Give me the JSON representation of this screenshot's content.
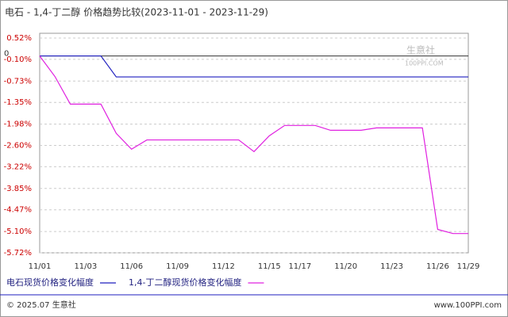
{
  "chart_data": {
    "type": "line",
    "title": "电石 - 1,4-丁二醇 价格趋势比较(2023-11-01 - 2023-11-29)",
    "categories": [
      "11/01",
      null,
      null,
      "11/03",
      null,
      null,
      "11/06",
      null,
      null,
      "11/09",
      null,
      null,
      "11/12",
      null,
      null,
      "11/15",
      null,
      "11/17",
      null,
      null,
      "11/20",
      null,
      null,
      "11/23",
      null,
      null,
      "11/26",
      null,
      "11/29"
    ],
    "series": [
      {
        "name": "电石现货价格变化幅度",
        "color": "#1f1fbf",
        "values": [
          0,
          0,
          0,
          0,
          0,
          -0.61,
          -0.61,
          -0.61,
          -0.61,
          -0.61,
          -0.61,
          -0.61,
          -0.61,
          -0.61,
          -0.61,
          -0.61,
          -0.61,
          -0.61,
          -0.61,
          -0.61,
          -0.61,
          -0.61,
          -0.61,
          -0.61,
          -0.61,
          -0.61,
          -0.61,
          -0.61,
          -0.61
        ]
      },
      {
        "name": "1,4-丁二醇现货价格变化幅度",
        "color": "#e020e0",
        "values": [
          0,
          -0.6,
          -1.4,
          -1.4,
          -1.4,
          -2.25,
          -2.71,
          -2.44,
          -2.44,
          -2.44,
          -2.44,
          -2.44,
          -2.44,
          -2.44,
          -2.78,
          -2.32,
          -2.02,
          -2.02,
          -2.02,
          -2.16,
          -2.16,
          -2.16,
          -2.09,
          -2.09,
          -2.09,
          -2.09,
          -5.04,
          -5.16,
          -5.16
        ]
      }
    ],
    "ylim": [
      -5.72,
      0.52
    ],
    "yticks": [
      {
        "value": 0.52,
        "label": "0.52%"
      },
      {
        "value": -0.1,
        "label": "-0.10%"
      },
      {
        "value": -0.73,
        "label": "-0.73%"
      },
      {
        "value": -1.35,
        "label": "-1.35%"
      },
      {
        "value": -1.98,
        "label": "-1.98%"
      },
      {
        "value": -2.6,
        "label": "-2.60%"
      },
      {
        "value": -3.22,
        "label": "-3.22%"
      },
      {
        "value": -3.85,
        "label": "-3.85%"
      },
      {
        "value": -4.47,
        "label": "-4.47%"
      },
      {
        "value": -5.1,
        "label": "-5.10%"
      },
      {
        "value": -5.72,
        "label": "-5.72%"
      }
    ],
    "zero_line": {
      "value": 0,
      "label": "0"
    },
    "grid": true,
    "watermark": [
      "生意社",
      "100PPI.COM"
    ],
    "footer": {
      "left": "© 2025.07 生意社",
      "right": "www.100PPI.com"
    }
  }
}
